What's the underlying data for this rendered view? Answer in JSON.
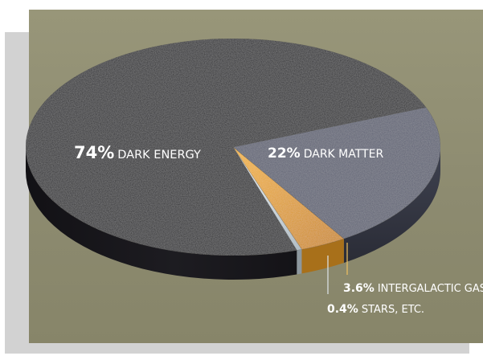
{
  "colors": {
    "background": "#8f8d73",
    "frame": "#d2d2d2",
    "dark_energy": "#2b2a2e",
    "dark_matter": "#5d6172",
    "intergalactic_gas": "#e3a22d",
    "stars": "#c9d3d8"
  },
  "chart_data": {
    "type": "pie",
    "title": "",
    "slices": [
      {
        "label": "DARK ENERGY",
        "percent_text": "74%",
        "value": 74,
        "color": "#2b2a2e"
      },
      {
        "label": "DARK MATTER",
        "percent_text": "22%",
        "value": 22,
        "color": "#5d6172"
      },
      {
        "label": "INTERGALACTIC GAS",
        "percent_text": "3.6%",
        "value": 3.6,
        "color": "#e3a22d"
      },
      {
        "label": "STARS, ETC.",
        "percent_text": "0.4%",
        "value": 0.4,
        "color": "#c9d3d8"
      }
    ],
    "legend": "none"
  }
}
